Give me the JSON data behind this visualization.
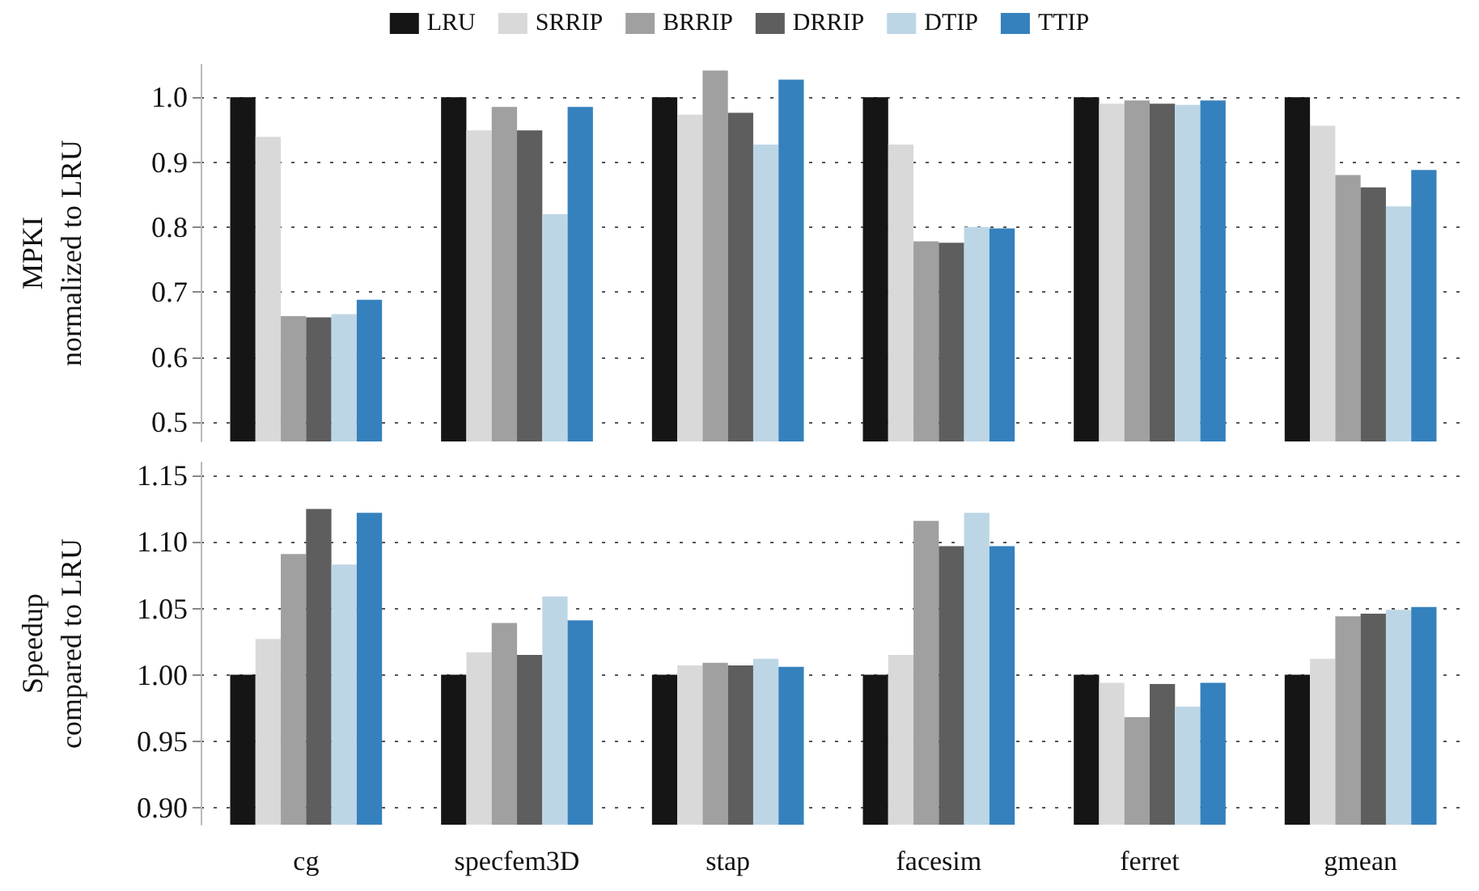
{
  "chart_data": [
    {
      "type": "bar",
      "ylabel": "MPKI\nnormalized to LRU",
      "categories": [
        "cg",
        "specfem3D",
        "stap",
        "facesim",
        "ferret",
        "gmean"
      ],
      "series": [
        {
          "name": "LRU",
          "color": "#151515",
          "values": [
            1.0,
            1.0,
            1.0,
            1.0,
            1.0,
            1.0
          ]
        },
        {
          "name": "SRRIP",
          "color": "#d9d9d9",
          "values": [
            0.939,
            0.949,
            0.973,
            0.927,
            0.99,
            0.956
          ]
        },
        {
          "name": "BRRIP",
          "color": "#a0a0a0",
          "values": [
            0.663,
            0.985,
            1.041,
            0.778,
            0.995,
            0.88
          ]
        },
        {
          "name": "DRRIP",
          "color": "#5e5e5e",
          "values": [
            0.661,
            0.949,
            0.976,
            0.776,
            0.99,
            0.861
          ]
        },
        {
          "name": "DTIP",
          "color": "#bdd6e6",
          "values": [
            0.666,
            0.82,
            0.927,
            0.8,
            0.988,
            0.832
          ]
        },
        {
          "name": "TTIP",
          "color": "#3581bd",
          "values": [
            0.688,
            0.985,
            1.027,
            0.798,
            0.995,
            0.888
          ]
        }
      ],
      "ylim": [
        0.47,
        1.05
      ],
      "yticks": [
        0.5,
        0.6,
        0.7,
        0.8,
        0.9,
        {
          "value": 1.0,
          "label": "1.0"
        }
      ],
      "grid": "y",
      "legend": "top",
      "tick_labels": "y"
    },
    {
      "type": "bar",
      "ylabel": "Speedup\ncompared to LRU",
      "categories": [
        "cg",
        "specfem3D",
        "stap",
        "facesim",
        "ferret",
        "gmean"
      ],
      "series": [
        {
          "name": "LRU",
          "color": "#151515",
          "values": [
            1.0,
            1.0,
            1.0,
            1.0,
            1.0,
            1.0
          ]
        },
        {
          "name": "SRRIP",
          "color": "#d9d9d9",
          "values": [
            1.027,
            1.017,
            1.007,
            1.015,
            0.994,
            1.012
          ]
        },
        {
          "name": "BRRIP",
          "color": "#a0a0a0",
          "values": [
            1.091,
            1.039,
            1.009,
            1.116,
            0.968,
            1.044
          ]
        },
        {
          "name": "DRRIP",
          "color": "#5e5e5e",
          "values": [
            1.125,
            1.015,
            1.007,
            1.097,
            0.993,
            1.046
          ]
        },
        {
          "name": "DTIP",
          "color": "#bdd6e6",
          "values": [
            1.083,
            1.059,
            1.012,
            1.122,
            0.976,
            1.049
          ]
        },
        {
          "name": "TTIP",
          "color": "#3581bd",
          "values": [
            1.122,
            1.041,
            1.006,
            1.097,
            0.994,
            1.051
          ]
        }
      ],
      "ylim": [
        0.887,
        1.16
      ],
      "yticks": [
        {
          "value": 0.9,
          "label": "0.90"
        },
        {
          "value": 0.95,
          "label": "0.95"
        },
        {
          "value": 1.0,
          "label": "1.00"
        },
        {
          "value": 1.05,
          "label": "1.05"
        },
        {
          "value": 1.1,
          "label": "1.10"
        },
        {
          "value": 1.15,
          "label": "1.15"
        }
      ],
      "grid": "y",
      "legend": false
    }
  ]
}
